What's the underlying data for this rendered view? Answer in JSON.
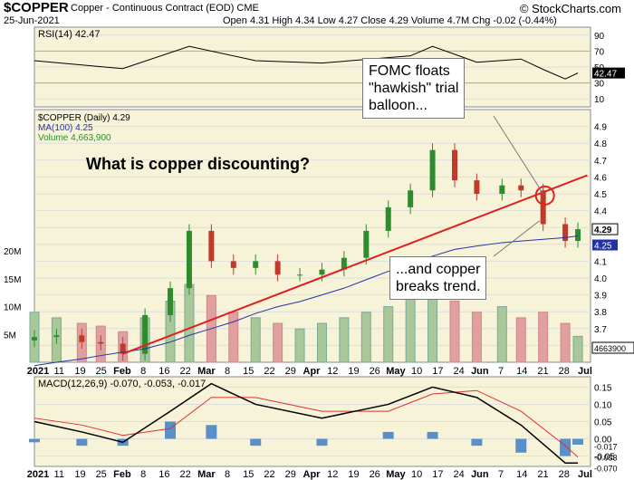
{
  "header": {
    "symbol": "$COPPER",
    "desc": "Copper - Continuous Contract (EOD) CME",
    "date": "25-Jun-2021",
    "source": "© StockCharts.com",
    "ohlc": "Open 4.31  High 4.34  Low 4.27  Close 4.29  Volume 4.7M  Chg -0.02 (-0.44%)"
  },
  "rsi_panel": {
    "label": "RSI(14) 42.47",
    "ticks": [
      "90",
      "70",
      "50",
      "30",
      "10"
    ],
    "last_value": "42.47"
  },
  "price_panel": {
    "legend": [
      "$COPPER (Daily) 4.29",
      "MA(100) 4.25",
      "Volume 4,663,900"
    ],
    "price_ticks": [
      "4.9",
      "4.8",
      "4.7",
      "4.6",
      "4.5",
      "4.4",
      "4.3",
      "4.2",
      "4.1",
      "4.0",
      "3.9",
      "3.8",
      "3.7",
      "3.6"
    ],
    "volume_ticks": [
      "20M",
      "15M",
      "10M",
      "5M"
    ],
    "last_price": "4.29",
    "last_ma": "4.25",
    "last_volume": "4663900",
    "annotation_main": "What is copper discounting?",
    "annotation_fomc": "FOMC floats\n\"hawkish\" trial\nballoon...",
    "annotation_trend": "...and copper\nbreaks trend."
  },
  "macd_panel": {
    "label": "MACD(12,26,9) -0.070, -0.053, -0.017",
    "ticks": [
      "0.15",
      "0.10",
      "0.05",
      "0.00",
      "-0.05"
    ],
    "last_values": [
      "-0.017",
      "-0.053",
      "-0.070"
    ]
  },
  "x_axis": [
    "2021",
    "11",
    "19",
    "25",
    "Feb",
    "8",
    "16",
    "22",
    "Mar",
    "8",
    "15",
    "22",
    "29",
    "Apr",
    "12",
    "19",
    "26",
    "May",
    "10",
    "17",
    "24",
    "Jun",
    "7",
    "14",
    "21",
    "28",
    "Jul"
  ],
  "colors": {
    "up": "#2e8b2e",
    "down": "#c0392b",
    "ma": "#2233aa",
    "trend": "#e02020",
    "bg": "#f7f3d8"
  },
  "chart_data": [
    {
      "type": "line",
      "title": "RSI(14) 42.47",
      "ylim": [
        0,
        100
      ],
      "x": [
        "2021-01-04",
        "2021-02-01",
        "2021-02-22",
        "2021-03-15",
        "2021-04-05",
        "2021-05-03",
        "2021-05-10",
        "2021-05-24",
        "2021-06-07",
        "2021-06-14",
        "2021-06-21",
        "2021-06-25"
      ],
      "values": [
        58,
        48,
        76,
        58,
        55,
        64,
        76,
        56,
        60,
        47,
        35,
        42.47
      ]
    },
    {
      "type": "candlestick",
      "title": "$COPPER (Daily) 4.29",
      "ylim": [
        3.5,
        5.0
      ],
      "x": [
        "2021-01-04",
        "2021-01-11",
        "2021-01-19",
        "2021-01-25",
        "2021-02-01",
        "2021-02-08",
        "2021-02-16",
        "2021-02-22",
        "2021-03-01",
        "2021-03-08",
        "2021-03-15",
        "2021-03-22",
        "2021-03-29",
        "2021-04-05",
        "2021-04-12",
        "2021-04-19",
        "2021-04-26",
        "2021-05-03",
        "2021-05-10",
        "2021-05-17",
        "2021-05-24",
        "2021-06-01",
        "2021-06-07",
        "2021-06-14",
        "2021-06-21",
        "2021-06-25"
      ],
      "close": [
        3.65,
        3.66,
        3.62,
        3.61,
        3.55,
        3.78,
        3.94,
        4.28,
        4.1,
        4.06,
        4.1,
        4.02,
        4.02,
        4.05,
        4.12,
        4.28,
        4.42,
        4.52,
        4.76,
        4.58,
        4.5,
        4.55,
        4.52,
        4.32,
        4.22,
        4.29
      ],
      "series": [
        {
          "name": "MA(100) 4.25",
          "values": [
            3.48,
            3.5,
            3.52,
            3.54,
            3.56,
            3.58,
            3.62,
            3.66,
            3.7,
            3.74,
            3.79,
            3.83,
            3.86,
            3.9,
            3.94,
            3.99,
            4.04,
            4.08,
            4.13,
            4.17,
            4.19,
            4.21,
            4.22,
            4.23,
            4.24,
            4.25
          ]
        }
      ],
      "trendline": [
        [
          "2021-02-01",
          3.55
        ],
        [
          "2021-06-28",
          4.61
        ]
      ]
    },
    {
      "type": "bar",
      "title": "Volume 4,663,900",
      "ylim": [
        0,
        25000000
      ],
      "x": [
        "2021-01-04",
        "2021-01-11",
        "2021-01-19",
        "2021-01-25",
        "2021-02-01",
        "2021-02-08",
        "2021-02-16",
        "2021-02-22",
        "2021-03-01",
        "2021-03-08",
        "2021-03-15",
        "2021-03-22",
        "2021-03-29",
        "2021-04-05",
        "2021-04-12",
        "2021-04-19",
        "2021-04-26",
        "2021-05-03",
        "2021-05-10",
        "2021-05-17",
        "2021-05-24",
        "2021-06-01",
        "2021-06-07",
        "2021-06-14",
        "2021-06-21",
        "2021-06-25"
      ],
      "values": [
        9000000,
        8000000,
        7000000,
        6500000,
        5500000,
        8000000,
        11000000,
        14000000,
        12000000,
        9000000,
        8000000,
        7000000,
        6000000,
        7000000,
        8000000,
        9000000,
        10000000,
        12000000,
        13000000,
        11000000,
        9000000,
        10000000,
        8000000,
        9000000,
        7000000,
        4663900
      ]
    },
    {
      "type": "line",
      "title": "MACD(12,26,9) -0.070, -0.053, -0.017",
      "ylim": [
        -0.08,
        0.18
      ],
      "x": [
        "2021-01-04",
        "2021-01-19",
        "2021-02-01",
        "2021-02-16",
        "2021-03-01",
        "2021-03-15",
        "2021-04-05",
        "2021-04-26",
        "2021-05-10",
        "2021-05-24",
        "2021-06-07",
        "2021-06-21",
        "2021-06-25"
      ],
      "series": [
        {
          "name": "MACD",
          "values": [
            0.05,
            0.02,
            -0.01,
            0.08,
            0.16,
            0.1,
            0.06,
            0.1,
            0.15,
            0.12,
            0.04,
            -0.07,
            -0.07
          ]
        },
        {
          "name": "Signal",
          "values": [
            0.06,
            0.04,
            0.01,
            0.03,
            0.12,
            0.12,
            0.08,
            0.08,
            0.13,
            0.14,
            0.08,
            -0.02,
            -0.053
          ]
        },
        {
          "name": "Histogram",
          "values": [
            -0.01,
            -0.02,
            -0.02,
            0.05,
            0.04,
            -0.02,
            -0.02,
            0.02,
            0.02,
            -0.02,
            -0.04,
            -0.05,
            -0.017
          ]
        }
      ]
    }
  ]
}
